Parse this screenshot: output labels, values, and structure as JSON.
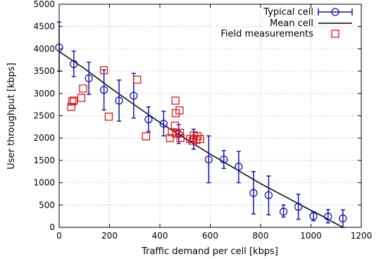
{
  "chart_data": {
    "type": "scatter",
    "xlabel": "Traffic demand per cell [kbps]",
    "ylabel": "User throughput [kbps]",
    "xlim": [
      0,
      1200
    ],
    "ylim": [
      0,
      5000
    ],
    "xticks": [
      0,
      200,
      400,
      600,
      800,
      1000,
      1200
    ],
    "yticks": [
      0,
      500,
      1000,
      1500,
      2000,
      2500,
      3000,
      3500,
      4000,
      4500,
      5000
    ],
    "grid": true,
    "legend_position": "top-right",
    "series": [
      {
        "name": "Typical cell",
        "marker": "circle",
        "error_bars": true,
        "color": "#1414b4",
        "points": [
          {
            "x": 0,
            "y": 4030,
            "lo": 3500,
            "hi": 4600
          },
          {
            "x": 58,
            "y": 3660,
            "lo": 3380,
            "hi": 3950
          },
          {
            "x": 118,
            "y": 3340,
            "lo": 2980,
            "hi": 3700
          },
          {
            "x": 178,
            "y": 3080,
            "lo": 2630,
            "hi": 3530
          },
          {
            "x": 238,
            "y": 2840,
            "lo": 2380,
            "hi": 3300
          },
          {
            "x": 296,
            "y": 2950,
            "lo": 2450,
            "hi": 3450
          },
          {
            "x": 355,
            "y": 2420,
            "lo": 2150,
            "hi": 2700
          },
          {
            "x": 415,
            "y": 2320,
            "lo": 2050,
            "hi": 2600
          },
          {
            "x": 475,
            "y": 2090,
            "lo": 1880,
            "hi": 2300
          },
          {
            "x": 534,
            "y": 1990,
            "lo": 1750,
            "hi": 2200
          },
          {
            "x": 594,
            "y": 1520,
            "lo": 1000,
            "hi": 2050
          },
          {
            "x": 654,
            "y": 1520,
            "lo": 1320,
            "hi": 1720
          },
          {
            "x": 713,
            "y": 1360,
            "lo": 1000,
            "hi": 1700
          },
          {
            "x": 772,
            "y": 770,
            "lo": 300,
            "hi": 1250
          },
          {
            "x": 832,
            "y": 720,
            "lo": 280,
            "hi": 1150
          },
          {
            "x": 891,
            "y": 350,
            "lo": 230,
            "hi": 500
          },
          {
            "x": 950,
            "y": 460,
            "lo": 180,
            "hi": 740
          },
          {
            "x": 1010,
            "y": 250,
            "lo": 150,
            "hi": 350
          },
          {
            "x": 1068,
            "y": 240,
            "lo": 100,
            "hi": 400
          },
          {
            "x": 1127,
            "y": 200,
            "lo": 0,
            "hi": 390
          }
        ]
      },
      {
        "name": "Mean cell",
        "type": "line",
        "color": "#000000",
        "x": [
          0,
          100,
          200,
          300,
          400,
          500,
          600,
          700,
          800,
          900,
          1000,
          1050,
          1080,
          1100,
          1127
        ],
        "y": [
          3940,
          3560,
          3140,
          2740,
          2350,
          1990,
          1640,
          1310,
          980,
          680,
          380,
          240,
          140,
          80,
          0
        ]
      },
      {
        "name": "Field measurements",
        "marker": "square",
        "color": "#e01818",
        "x": [
          48,
          52,
          58,
          88,
          95,
          178,
          197,
          310,
          345,
          440,
          448,
          460,
          462,
          463,
          465,
          478,
          480,
          482,
          520,
          530,
          535,
          545,
          550,
          560
        ],
        "y": [
          2700,
          2820,
          2840,
          2900,
          3110,
          3520,
          2480,
          3310,
          2040,
          2000,
          2130,
          2280,
          2840,
          2560,
          2100,
          2620,
          2120,
          2000,
          1980,
          1940,
          2060,
          1960,
          2040,
          1980
        ]
      }
    ]
  }
}
